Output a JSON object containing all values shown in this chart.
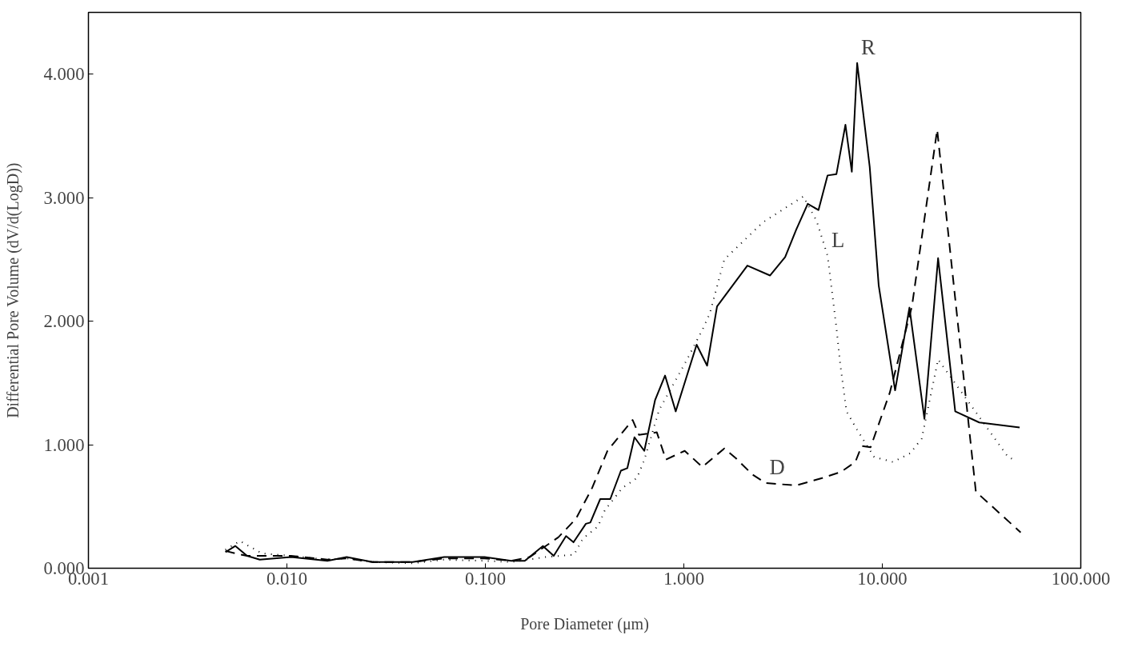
{
  "chart_data": {
    "type": "line",
    "xlabel": "Pore Diameter (μm)",
    "ylabel": "Differential Pore Volume (dV/d(LogD))",
    "log": "x",
    "grid": false,
    "xlim": [
      0.001,
      100
    ],
    "ylim": [
      0,
      4.5
    ],
    "xticks": [
      {
        "value": 0.001,
        "label": "0.001"
      },
      {
        "value": 0.01,
        "label": "0.010"
      },
      {
        "value": 0.1,
        "label": "0.100"
      },
      {
        "value": 1,
        "label": "1.000"
      },
      {
        "value": 10,
        "label": "10.000"
      },
      {
        "value": 100,
        "label": "100.000"
      }
    ],
    "yticks": [
      {
        "value": 0,
        "label": "0.000"
      },
      {
        "value": 1,
        "label": "1.000"
      },
      {
        "value": 2,
        "label": "2.000"
      },
      {
        "value": 3,
        "label": "3.000"
      },
      {
        "value": 4,
        "label": "4.000"
      }
    ],
    "series": [
      {
        "color": "#000000",
        "line_style": "solid",
        "x": [
          0.0049,
          0.0055,
          0.0063,
          0.0073,
          0.0105,
          0.016,
          0.02,
          0.027,
          0.043,
          0.062,
          0.099,
          0.135,
          0.158,
          0.195,
          0.221,
          0.255,
          0.278,
          0.321,
          0.338,
          0.379,
          0.426,
          0.482,
          0.519,
          0.564,
          0.632,
          0.716,
          0.804,
          0.91,
          1.16,
          1.31,
          1.47,
          2.09,
          2.72,
          3.24,
          3.68,
          4.21,
          4.77,
          5.3,
          5.87,
          6.52,
          7.02,
          7.47,
          8.64,
          9.59,
          11.6,
          13.7,
          16.3,
          19.1,
          23.3,
          30.8,
          49.2
        ],
        "values": [
          0.13,
          0.18,
          0.1,
          0.07,
          0.09,
          0.06,
          0.09,
          0.05,
          0.05,
          0.09,
          0.09,
          0.06,
          0.06,
          0.18,
          0.1,
          0.26,
          0.21,
          0.36,
          0.37,
          0.56,
          0.56,
          0.79,
          0.81,
          1.06,
          0.95,
          1.36,
          1.56,
          1.27,
          1.81,
          1.64,
          2.12,
          2.45,
          2.37,
          2.52,
          2.74,
          2.95,
          2.9,
          3.18,
          3.19,
          3.59,
          3.21,
          4.09,
          3.25,
          2.29,
          1.44,
          2.11,
          1.21,
          2.51,
          1.27,
          1.18,
          1.14
        ]
      },
      {
        "color": "#000000",
        "line_style": "dotted",
        "x": [
          0.0049,
          0.0058,
          0.0075,
          0.0105,
          0.016,
          0.02,
          0.027,
          0.043,
          0.062,
          0.099,
          0.135,
          0.2,
          0.28,
          0.31,
          0.37,
          0.4,
          0.49,
          0.58,
          0.63,
          0.75,
          1.03,
          1.24,
          1.35,
          1.6,
          2.5,
          4.0,
          4.67,
          5.3,
          5.87,
          6.13,
          6.6,
          7.47,
          9.1,
          11.3,
          13.8,
          15.8,
          19.1,
          43,
          46
        ],
        "values": [
          0.15,
          0.22,
          0.12,
          0.1,
          0.07,
          0.08,
          0.05,
          0.04,
          0.07,
          0.06,
          0.05,
          0.09,
          0.11,
          0.24,
          0.34,
          0.47,
          0.65,
          0.73,
          0.87,
          1.28,
          1.68,
          1.93,
          2.06,
          2.5,
          2.8,
          3.01,
          2.81,
          2.53,
          1.95,
          1.66,
          1.27,
          1.12,
          0.9,
          0.86,
          0.93,
          1.05,
          1.69,
          0.9,
          0.88
        ]
      },
      {
        "color": "#000000",
        "line_style": "dashed",
        "x": [
          0.0049,
          0.0055,
          0.0063,
          0.0105,
          0.016,
          0.02,
          0.027,
          0.043,
          0.062,
          0.099,
          0.135,
          0.167,
          0.233,
          0.286,
          0.345,
          0.412,
          0.552,
          0.594,
          0.731,
          0.812,
          1.01,
          1.24,
          1.6,
          1.83,
          2.21,
          2.58,
          3.68,
          4.98,
          6.19,
          7.31,
          7.87,
          8.73,
          10.9,
          14.1,
          18.9,
          29.6,
          49.8
        ],
        "values": [
          0.14,
          0.12,
          0.1,
          0.1,
          0.07,
          0.08,
          0.05,
          0.05,
          0.08,
          0.08,
          0.06,
          0.09,
          0.25,
          0.4,
          0.65,
          0.95,
          1.2,
          1.08,
          1.1,
          0.88,
          0.95,
          0.82,
          0.97,
          0.89,
          0.76,
          0.69,
          0.67,
          0.73,
          0.78,
          0.86,
          0.99,
          0.98,
          1.42,
          2.12,
          3.55,
          0.62,
          0.29
        ]
      }
    ],
    "annotations": [
      {
        "text": "R",
        "x": 7.47,
        "y": 4.09
      },
      {
        "text": "L",
        "x": 5.3,
        "y": 2.53
      },
      {
        "text": "D",
        "x": 2.58,
        "y": 0.69
      }
    ]
  }
}
